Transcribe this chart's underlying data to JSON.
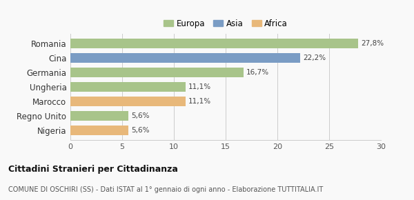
{
  "categories": [
    "Nigeria",
    "Regno Unito",
    "Marocco",
    "Ungheria",
    "Germania",
    "Cina",
    "Romania"
  ],
  "values": [
    5.6,
    5.6,
    11.1,
    11.1,
    16.7,
    22.2,
    27.8
  ],
  "labels": [
    "5,6%",
    "5,6%",
    "11,1%",
    "11,1%",
    "16,7%",
    "22,2%",
    "27,8%"
  ],
  "colors": [
    "#e8b87a",
    "#a8c48a",
    "#e8b87a",
    "#a8c48a",
    "#a8c48a",
    "#7a9cc4",
    "#a8c48a"
  ],
  "legend": [
    {
      "label": "Europa",
      "color": "#a8c48a"
    },
    {
      "label": "Asia",
      "color": "#7a9cc4"
    },
    {
      "label": "Africa",
      "color": "#e8b87a"
    }
  ],
  "xlim": [
    0,
    30
  ],
  "xticks": [
    0,
    5,
    10,
    15,
    20,
    25,
    30
  ],
  "title_main": "Cittadini Stranieri per Cittadinanza",
  "title_sub": "COMUNE DI OSCHIRI (SS) - Dati ISTAT al 1° gennaio di ogni anno - Elaborazione TUTTITALIA.IT",
  "bg_color": "#f9f9f9",
  "grid_color": "#cccccc",
  "bar_height": 0.65
}
